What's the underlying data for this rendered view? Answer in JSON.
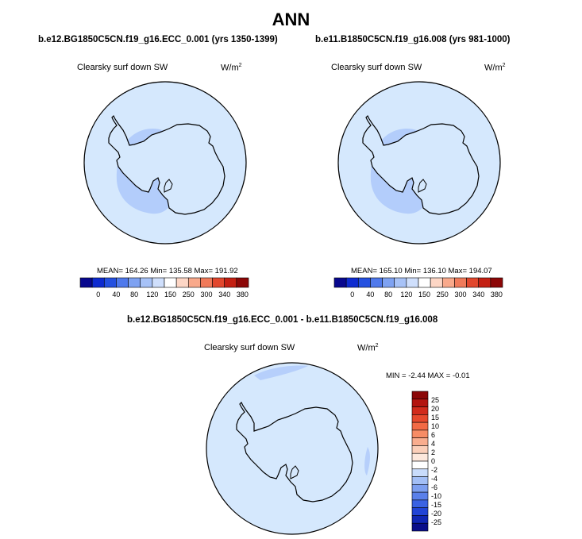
{
  "title": "ANN",
  "colors": {
    "ocean": "#d5e8fd",
    "low_region": "#b3cdfb",
    "land_outline": "#000000",
    "diff_minor": "#b6cffb"
  },
  "panels": [
    {
      "case": "b.e12.BG1850C5CN.f19_g16.ECC_0.001 (yrs 1350-1399)",
      "variable": "Clearsky surf down SW",
      "units_base": "W/m",
      "units_exp": "2",
      "stats": "MEAN= 164.26  Min= 135.58  Max= 191.92"
    },
    {
      "case": "b.e11.B1850C5CN.f19_g16.008 (yrs 981-1000)",
      "variable": "Clearsky surf down SW",
      "units_base": "W/m",
      "units_exp": "2",
      "stats": "MEAN= 165.10  Min= 136.10  Max= 194.07"
    }
  ],
  "colorbar_horizontal": {
    "colors": [
      "#08088e",
      "#0e2bd0",
      "#2450e0",
      "#4f79ec",
      "#7ea2f2",
      "#a7c2f7",
      "#cfdffc",
      "#ffffff",
      "#fdd6c5",
      "#f9a98b",
      "#f07a5a",
      "#e2472d",
      "#c41f12",
      "#8c0707"
    ],
    "ticks": [
      "0",
      "40",
      "80",
      "120",
      "150",
      "250",
      "300",
      "340",
      "380"
    ]
  },
  "diff": {
    "case": "b.e12.BG1850C5CN.f19_g16.ECC_0.001 - b.e11.B1850C5CN.f19_g16.008",
    "variable": "Clearsky surf down SW",
    "units_base": "W/m",
    "units_exp": "2",
    "stats": "MIN = -2.44 MAX =  -0.01"
  },
  "colorbar_vertical": {
    "colors": [
      "#8b0707",
      "#b31510",
      "#d12b1c",
      "#e6492d",
      "#f26a45",
      "#f78c65",
      "#f9ad8e",
      "#fbcfb9",
      "#fde8dc",
      "#ffffff",
      "#c9dcfb",
      "#a3bff6",
      "#7d9ff0",
      "#5a80ea",
      "#3a62e2",
      "#2144d6",
      "#1026b4",
      "#0a0e8a"
    ],
    "ticks": [
      "25",
      "20",
      "15",
      "10",
      "6",
      "4",
      "2",
      "0",
      "-2",
      "-4",
      "-6",
      "-10",
      "-15",
      "-20",
      "-25"
    ]
  }
}
